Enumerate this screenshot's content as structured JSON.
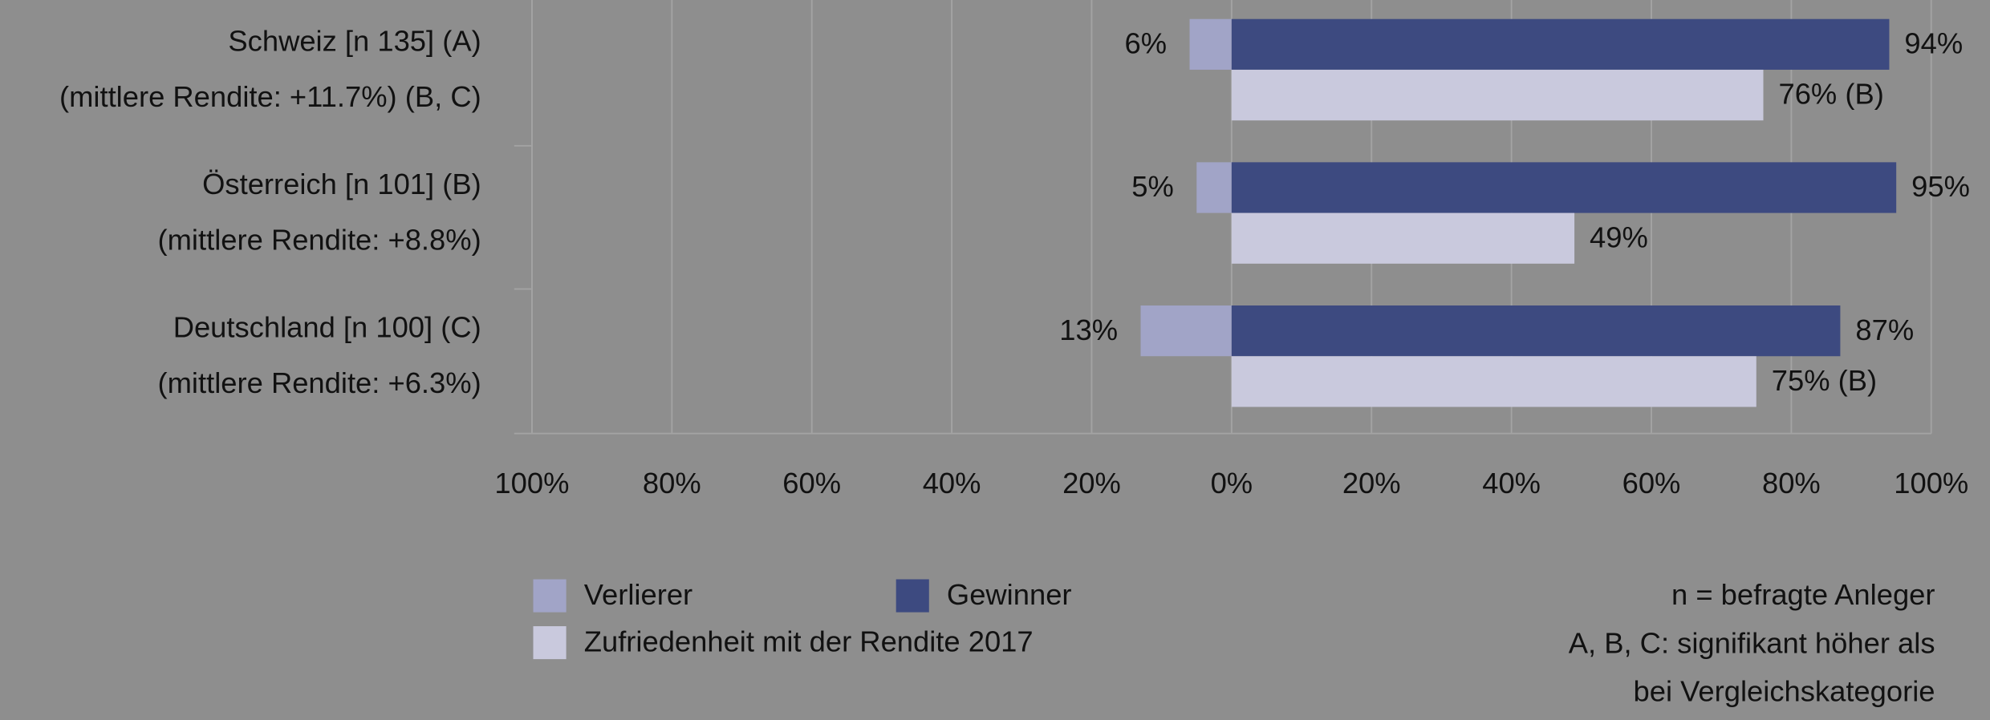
{
  "chart_data": {
    "type": "diverging-bar",
    "categories": [
      "Schweiz [n 135] (A)",
      "Österreich [n 101] (B)",
      "Deutschland [n 100] (C)"
    ],
    "category_notes": [
      "(mittlere Rendite: +11.7%) (B, C)",
      "(mittlere Rendite: +8.8%)",
      "(mittlere Rendite: +6.3%)"
    ],
    "series": [
      {
        "name": "Verlierer",
        "color": "#a1a4c7",
        "values": [
          -6,
          -5,
          -13
        ],
        "value_labels": [
          "6%",
          "5%",
          "13%"
        ]
      },
      {
        "name": "Gewinner",
        "color": "#3d4a80",
        "values": [
          94,
          95,
          87
        ],
        "value_labels": [
          "94%",
          "95%",
          "87%"
        ]
      },
      {
        "name": "Zufriedenheit mit der Rendite 2017",
        "color": "#c9c9dd",
        "values": [
          76,
          49,
          75
        ],
        "value_labels": [
          "76% (B)",
          "49%",
          "75% (B)"
        ]
      }
    ],
    "xlim": [
      -100,
      100
    ],
    "xticks": [
      {
        "value": -100,
        "label": "100%"
      },
      {
        "value": -80,
        "label": "80%"
      },
      {
        "value": -60,
        "label": "60%"
      },
      {
        "value": -40,
        "label": "40%"
      },
      {
        "value": -20,
        "label": "20%"
      },
      {
        "value": 0,
        "label": "0%"
      },
      {
        "value": 20,
        "label": "20%"
      },
      {
        "value": 40,
        "label": "40%"
      },
      {
        "value": 60,
        "label": "60%"
      },
      {
        "value": 80,
        "label": "80%"
      },
      {
        "value": 100,
        "label": "100%"
      }
    ],
    "grid": true,
    "notes": [
      "n = befragte Anleger",
      "A, B, C: signifikant höher als",
      "bei Vergleichskategorie"
    ]
  }
}
